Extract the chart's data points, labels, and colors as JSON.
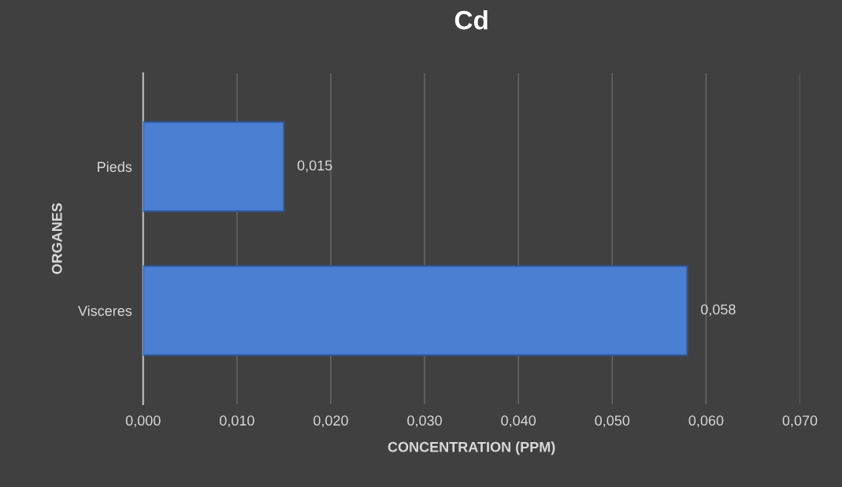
{
  "chart_data": {
    "type": "bar",
    "orientation": "horizontal",
    "title": "Cd",
    "xlabel": "CONCENTRATION (PPM)",
    "ylabel": "ORGANES",
    "categories": [
      "Pieds",
      "Visceres"
    ],
    "values": [
      0.015,
      0.058
    ],
    "color": "#4a7fd2",
    "value_labels": [
      "0,015",
      "0,058"
    ],
    "xlim": [
      0,
      0.07
    ],
    "xticks": [
      {
        "value": 0,
        "label": "0,000"
      },
      {
        "value": 0.01,
        "label": "0,010"
      },
      {
        "value": 0.02,
        "label": "0,020"
      },
      {
        "value": 0.03,
        "label": "0,030"
      },
      {
        "value": 0.04,
        "label": "0,040"
      },
      {
        "value": 0.05,
        "label": "0,050"
      },
      {
        "value": 0.06,
        "label": "0,060"
      },
      {
        "value": 0.07,
        "label": "0,070"
      }
    ],
    "grid": "x",
    "legend": false
  }
}
